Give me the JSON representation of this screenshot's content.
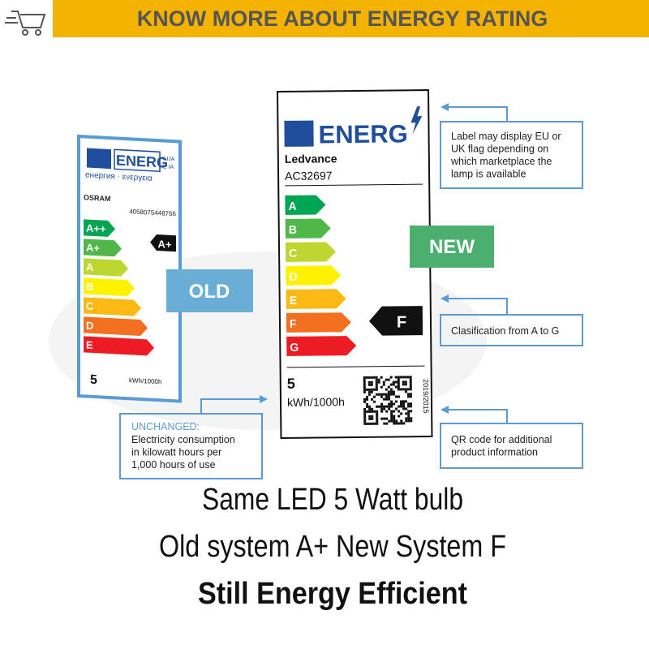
{
  "header": {
    "title": "KNOW MORE ABOUT ENERGY RATING"
  },
  "old_label": {
    "brand_text": "ENERG",
    "brand_suffix": [
      "Y IJA",
      "IE IA"
    ],
    "subtitle": "енергия · ενεργεια",
    "manufacturer": "OSRAM",
    "model": "4058075448766",
    "classes": [
      "A++",
      "A+",
      "A",
      "B",
      "C",
      "D",
      "E"
    ],
    "rating": "A+",
    "consumption": 5,
    "unit": "kWh/1000h",
    "tag": "OLD"
  },
  "new_label": {
    "brand_text": "ENERG",
    "manufacturer": "Ledvance",
    "model": "AC32697",
    "classes": [
      "A",
      "B",
      "C",
      "D",
      "E",
      "F",
      "G"
    ],
    "rating": "F",
    "consumption": 5,
    "unit": "kWh/1000h",
    "regulation": "2019/2015",
    "tag": "NEW"
  },
  "callouts": [
    {
      "lines": [
        "Label may display EU or",
        "UK flag depending on",
        "which marketplace the",
        "lamp is available"
      ]
    },
    {
      "lines": [
        "Clasification from A to G"
      ]
    },
    {
      "lines": [
        "QR code for additional",
        "product information"
      ]
    }
  ],
  "unchanged": {
    "heading": "UNCHANGED:",
    "lines": [
      "Electricity consumption",
      "in kilowatt hours per",
      "1,000 hours of use"
    ]
  },
  "footer": {
    "lines": [
      "Same LED 5 Watt bulb",
      "Old system A+ New System F",
      "Still Energy Efficient"
    ]
  }
}
